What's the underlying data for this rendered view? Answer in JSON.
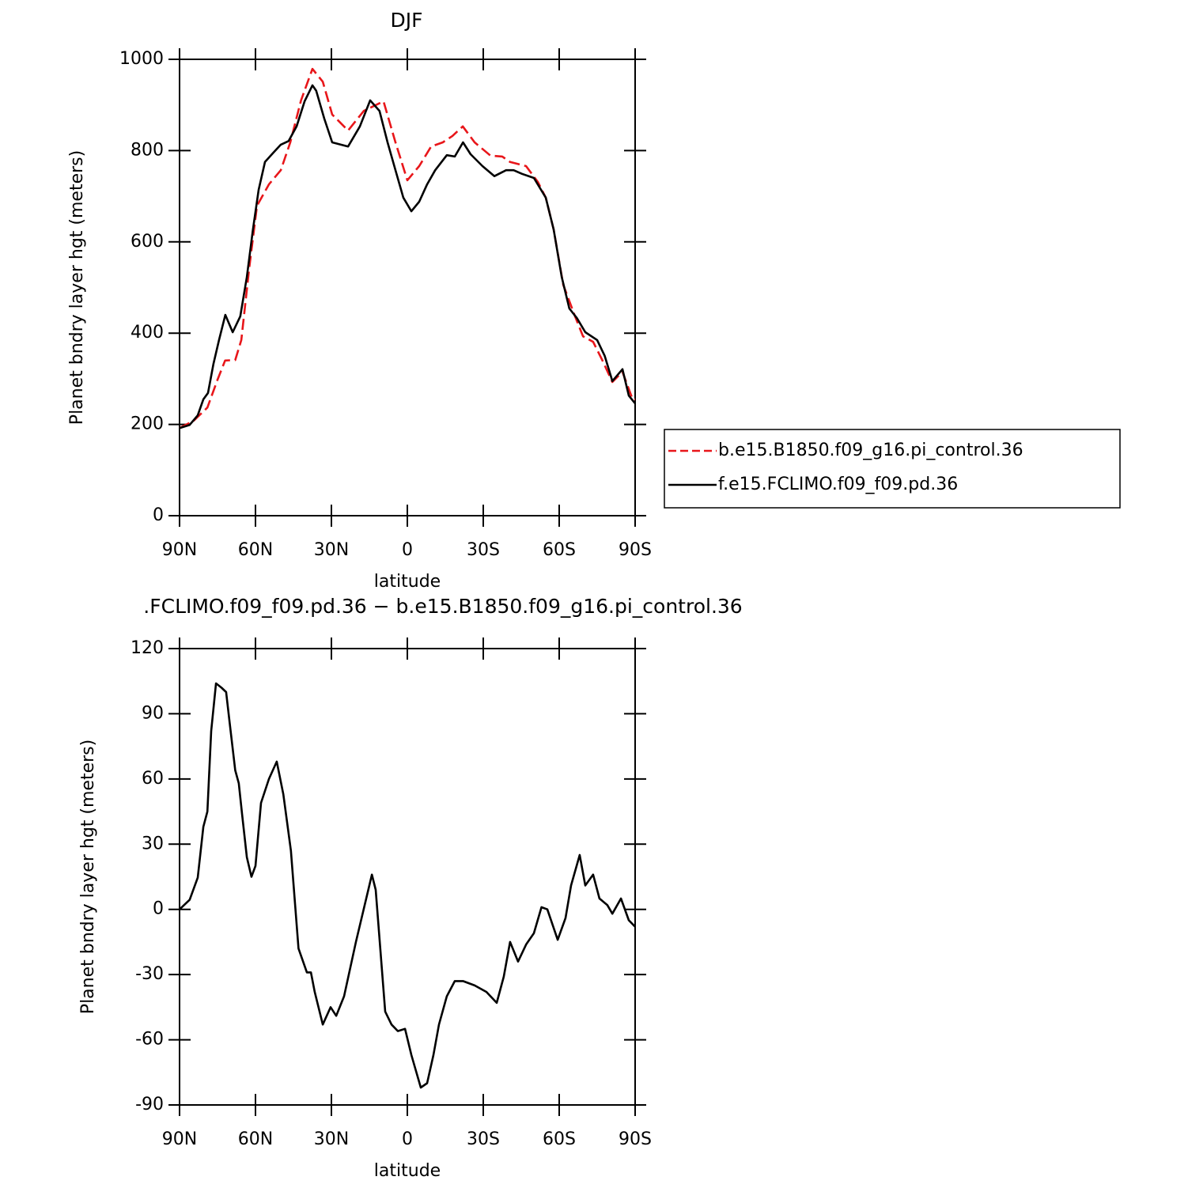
{
  "chart_data": [
    {
      "type": "line",
      "title": "DJF",
      "xlabel": "latitude",
      "ylabel": "Planet bndry layer hgt (meters)",
      "xlim": [
        90,
        -90
      ],
      "xticks": [
        {
          "value": 90,
          "label": "90N"
        },
        {
          "value": 60,
          "label": "60N"
        },
        {
          "value": 30,
          "label": "30N"
        },
        0,
        {
          "value": -30,
          "label": "30S"
        },
        {
          "value": -60,
          "label": "60S"
        },
        {
          "value": -90,
          "label": "90S"
        }
      ],
      "ylim": [
        0,
        1000
      ],
      "yticks": [
        0,
        200,
        400,
        600,
        800,
        1000
      ],
      "legend": "right",
      "series": [
        {
          "name": "b.e15.B1850.f09_g16.pi_control.36",
          "color": "#e8161a",
          "dashed": true,
          "x": [
            90,
            84.4,
            79,
            75,
            72,
            68,
            65.6,
            62.5,
            59.4,
            54.7,
            50,
            46.25,
            42,
            37.5,
            33.4,
            29.7,
            23.4,
            17.2,
            9.4,
            4.7,
            0,
            -4.7,
            -9.4,
            -14,
            -17.8,
            -21.9,
            -26.6,
            -32.8,
            -37.5,
            -40.6,
            -46.9,
            -51.6,
            -54.7,
            -57.8,
            -61.6,
            -66.25,
            -69.4,
            -73.4,
            -77,
            -81,
            -85,
            -89,
            -90
          ],
          "values": [
            192,
            208,
            237,
            298,
            340,
            341,
            385,
            541,
            679,
            726,
            757,
            818,
            910,
            979,
            951,
            879,
            844,
            887,
            908,
            818,
            735,
            766,
            809,
            818,
            832,
            853,
            818,
            789,
            787,
            775,
            766,
            731,
            697,
            627,
            506,
            437,
            393,
            381,
            341,
            293,
            315,
            255,
            255
          ]
        },
        {
          "name": "f.e15.FCLIMO.f09_f09.pd.36",
          "color": "#000000",
          "dashed": false,
          "x": [
            90,
            86,
            82.8,
            80.6,
            78.75,
            76.6,
            74.4,
            71.9,
            69,
            66,
            63.4,
            61,
            58.75,
            56.25,
            53,
            50,
            46.9,
            43.75,
            40.6,
            37.5,
            36,
            32.8,
            29.7,
            23.4,
            18.75,
            14.7,
            11,
            7.8,
            4.7,
            1.6,
            -1.6,
            -4.7,
            -7.8,
            -11,
            -15.6,
            -18.75,
            -22,
            -25,
            -29.7,
            -34.4,
            -39,
            -42,
            -45.3,
            -50,
            -54.7,
            -57.8,
            -61,
            -64,
            -67,
            -70.3,
            -75,
            -78,
            -81,
            -85,
            -87.5,
            -90
          ],
          "values": [
            192,
            199,
            220,
            255,
            269,
            333,
            385,
            440,
            402,
            437,
            523,
            627,
            714,
            775,
            795,
            813,
            821,
            853,
            908,
            943,
            931,
            870,
            818,
            809,
            853,
            910,
            887,
            818,
            757,
            697,
            667,
            688,
            726,
            757,
            790,
            787,
            818,
            792,
            766,
            744,
            757,
            757,
            749,
            740,
            697,
            627,
            523,
            454,
            433,
            402,
            385,
            350,
            295,
            321,
            263,
            246
          ]
        }
      ]
    },
    {
      "type": "line",
      "title": ".FCLIMO.f09_f09.pd.36 − b.e15.B1850.f09_g16.pi_control.36",
      "xlabel": "latitude",
      "ylabel": "Planet bndry layer hgt (meters)",
      "xlim": [
        90,
        -90
      ],
      "xticks": [
        {
          "value": 90,
          "label": "90N"
        },
        {
          "value": 60,
          "label": "60N"
        },
        {
          "value": 30,
          "label": "30N"
        },
        0,
        {
          "value": -30,
          "label": "30S"
        },
        {
          "value": -60,
          "label": "60S"
        },
        {
          "value": -90,
          "label": "90S"
        }
      ],
      "ylim": [
        -90,
        120
      ],
      "yticks": [
        -90,
        -60,
        -30,
        0,
        30,
        60,
        90,
        120
      ],
      "series": [
        {
          "color": "#000000",
          "dashed": false,
          "x": [
            90,
            86,
            82.8,
            80.6,
            79,
            77.5,
            75.6,
            73.4,
            71.6,
            70.3,
            68,
            66.6,
            65.3,
            63.4,
            61.6,
            60,
            57.8,
            54.7,
            51.6,
            49,
            46,
            43,
            39.7,
            38.1,
            36.6,
            33.4,
            30.3,
            28.1,
            25,
            20.3,
            14,
            12.5,
            8.75,
            6.25,
            3.75,
            0.9,
            -1.6,
            -5.3,
            -7.8,
            -10.3,
            -12.5,
            -15.6,
            -18.75,
            -22,
            -26.6,
            -31.25,
            -35.3,
            -38.1,
            -40.6,
            -43.75,
            -47,
            -50,
            -53,
            -55.3,
            -59.4,
            -62.5,
            -64.7,
            -68.1,
            -70.3,
            -73.4,
            -75.9,
            -79,
            -81,
            -84.4,
            -87.5,
            -90
          ],
          "values": [
            0,
            4.4,
            14.6,
            38,
            45,
            82,
            104,
            102,
            100,
            87,
            64,
            58,
            44,
            24,
            15,
            20,
            49,
            60,
            68,
            53,
            27,
            -18,
            -29,
            -29,
            -38,
            -53,
            -45,
            -49,
            -40,
            -15,
            16,
            9,
            -47,
            -53,
            -56,
            -55,
            -67,
            -82,
            -80,
            -67,
            -53,
            -40,
            -33,
            -33,
            -35,
            -38,
            -43,
            -31,
            -15,
            -24,
            -16,
            -11,
            1,
            0,
            -14,
            -4,
            11,
            25,
            11,
            16,
            5,
            2,
            -2,
            5,
            -5,
            -8
          ]
        }
      ]
    }
  ]
}
